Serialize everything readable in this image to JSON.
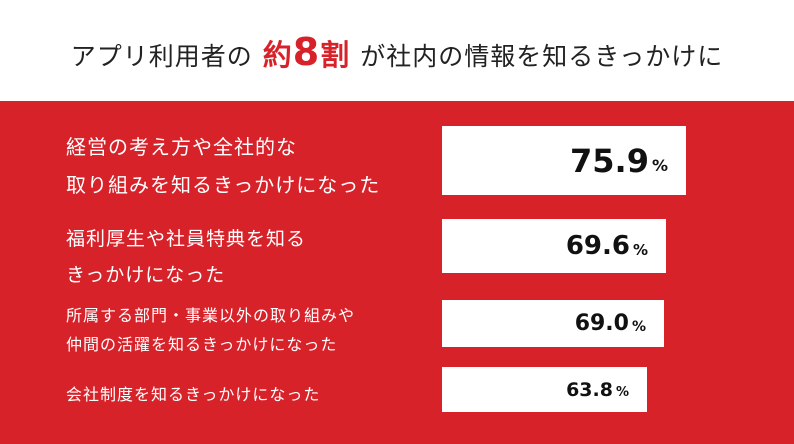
{
  "title": {
    "prefix": "アプリ利用者の",
    "highlight_prefix": "約",
    "highlight_number": "8",
    "highlight_suffix": "割",
    "suffix": "が社内の情報を知るきっかけに"
  },
  "colors": {
    "accent": "#d7222a",
    "bar": "#ffffff",
    "text": "#111111"
  },
  "chart_data": {
    "type": "bar",
    "orientation": "horizontal",
    "categories": [
      "経営の考え方や全社的な取り組みを知るきっかけになった",
      "福利厚生や社員特典を知るきっかけになった",
      "所属する部門・事業以外の取り組みや仲間の活躍を知るきっかけになった",
      "会社制度を知るきっかけになった"
    ],
    "category_lines": [
      [
        "経営の考え方や全社的な",
        "取り組みを知るきっかけになった"
      ],
      [
        "福利厚生や社員特典を知る",
        "きっかけになった"
      ],
      [
        "所属する部門・事業以外の取り組みや",
        "仲間の活躍を知るきっかけになった"
      ],
      [
        "会社制度を知るきっかけになった"
      ]
    ],
    "values": [
      75.9,
      69.6,
      69.0,
      63.8
    ],
    "value_labels": [
      "75.9",
      "69.6",
      "69.0",
      "63.8"
    ],
    "unit": "%",
    "title": "アプリ利用者の約8割が社内の情報を知るきっかけに",
    "xlabel": "",
    "ylabel": ""
  }
}
